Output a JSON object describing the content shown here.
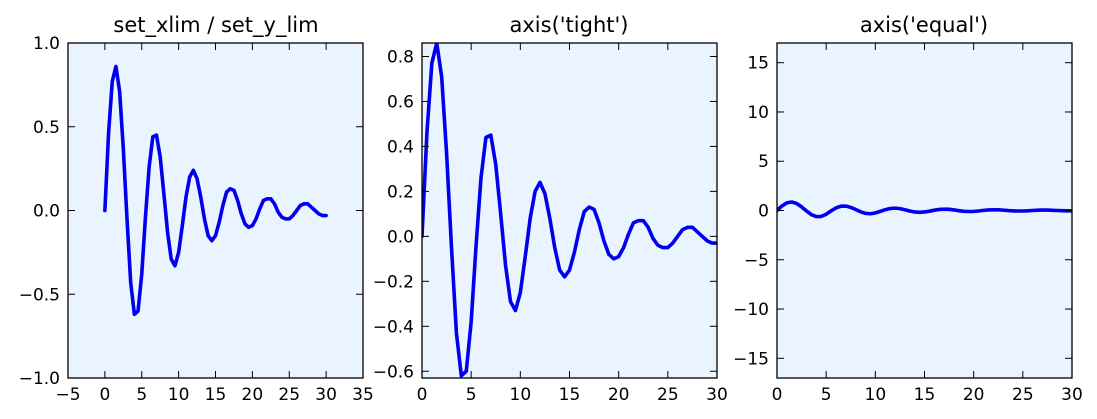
{
  "chart_data": [
    {
      "type": "line",
      "title": "set_xlim / set_y_lim",
      "xlim": [
        -5,
        35
      ],
      "ylim": [
        -1.0,
        1.0
      ],
      "xticks": [
        -5,
        0,
        5,
        10,
        15,
        20,
        25,
        30,
        35
      ],
      "xtick_labels": [
        "−5",
        "0",
        "5",
        "10",
        "15",
        "20",
        "25",
        "30",
        "35"
      ],
      "yticks": [
        -1.0,
        -0.5,
        0.0,
        0.5,
        1.0
      ],
      "ytick_labels": [
        "−1.0",
        "−0.5",
        "0.0",
        "0.5",
        "1.0"
      ],
      "background": "#eaf4fe",
      "series": [
        {
          "color": "#0000ee",
          "x": [
            0,
            0.5,
            1,
            1.5,
            2,
            2.5,
            3,
            3.5,
            4,
            4.5,
            5,
            5.5,
            6,
            6.5,
            7,
            7.5,
            8,
            8.5,
            9,
            9.5,
            10,
            10.5,
            11,
            11.5,
            12,
            12.5,
            13,
            13.5,
            14,
            14.5,
            15,
            15.5,
            16,
            16.5,
            17,
            17.5,
            18,
            18.5,
            19,
            19.5,
            20,
            20.5,
            21,
            21.5,
            22,
            22.5,
            23,
            23.5,
            24,
            24.5,
            25,
            25.5,
            26,
            26.5,
            27,
            27.5,
            28,
            28.5,
            29,
            29.5,
            30
          ],
          "y": [
            0.0,
            0.46,
            0.77,
            0.86,
            0.71,
            0.37,
            -0.05,
            -0.43,
            -0.62,
            -0.6,
            -0.38,
            -0.04,
            0.26,
            0.44,
            0.45,
            0.32,
            0.1,
            -0.13,
            -0.29,
            -0.33,
            -0.25,
            -0.09,
            0.08,
            0.2,
            0.24,
            0.19,
            0.08,
            -0.05,
            -0.15,
            -0.18,
            -0.15,
            -0.07,
            0.03,
            0.11,
            0.13,
            0.12,
            0.06,
            -0.02,
            -0.08,
            -0.1,
            -0.09,
            -0.05,
            0.01,
            0.06,
            0.07,
            0.07,
            0.04,
            -0.01,
            -0.04,
            -0.05,
            -0.05,
            -0.03,
            0.0,
            0.03,
            0.04,
            0.04,
            0.02,
            0.0,
            -0.02,
            -0.03,
            -0.03
          ]
        }
      ]
    },
    {
      "type": "line",
      "title": "axis('tight')",
      "xlim": [
        0,
        30
      ],
      "ylim": [
        -0.63,
        0.86
      ],
      "xticks": [
        0,
        5,
        10,
        15,
        20,
        25,
        30
      ],
      "xtick_labels": [
        "0",
        "5",
        "10",
        "15",
        "20",
        "25",
        "30"
      ],
      "yticks": [
        -0.6,
        -0.4,
        -0.2,
        0.0,
        0.2,
        0.4,
        0.6,
        0.8
      ],
      "ytick_labels": [
        "−0.6",
        "−0.4",
        "−0.2",
        "0.0",
        "0.2",
        "0.4",
        "0.6",
        "0.8"
      ],
      "background": "#eaf4fe",
      "series": [
        {
          "color": "#0000ee",
          "x": [
            0,
            0.5,
            1,
            1.5,
            2,
            2.5,
            3,
            3.5,
            4,
            4.5,
            5,
            5.5,
            6,
            6.5,
            7,
            7.5,
            8,
            8.5,
            9,
            9.5,
            10,
            10.5,
            11,
            11.5,
            12,
            12.5,
            13,
            13.5,
            14,
            14.5,
            15,
            15.5,
            16,
            16.5,
            17,
            17.5,
            18,
            18.5,
            19,
            19.5,
            20,
            20.5,
            21,
            21.5,
            22,
            22.5,
            23,
            23.5,
            24,
            24.5,
            25,
            25.5,
            26,
            26.5,
            27,
            27.5,
            28,
            28.5,
            29,
            29.5,
            30
          ],
          "y": [
            0.0,
            0.46,
            0.77,
            0.86,
            0.71,
            0.37,
            -0.05,
            -0.43,
            -0.62,
            -0.6,
            -0.38,
            -0.04,
            0.26,
            0.44,
            0.45,
            0.32,
            0.1,
            -0.13,
            -0.29,
            -0.33,
            -0.25,
            -0.09,
            0.08,
            0.2,
            0.24,
            0.19,
            0.08,
            -0.05,
            -0.15,
            -0.18,
            -0.15,
            -0.07,
            0.03,
            0.11,
            0.13,
            0.12,
            0.06,
            -0.02,
            -0.08,
            -0.1,
            -0.09,
            -0.05,
            0.01,
            0.06,
            0.07,
            0.07,
            0.04,
            -0.01,
            -0.04,
            -0.05,
            -0.05,
            -0.03,
            0.0,
            0.03,
            0.04,
            0.04,
            0.02,
            0.0,
            -0.02,
            -0.03,
            -0.03
          ]
        }
      ]
    },
    {
      "type": "line",
      "title": "axis('equal')",
      "xlim": [
        0,
        30
      ],
      "ylim": [
        -17,
        17
      ],
      "xticks": [
        0,
        5,
        10,
        15,
        20,
        25,
        30
      ],
      "xtick_labels": [
        "0",
        "5",
        "10",
        "15",
        "20",
        "25",
        "30"
      ],
      "yticks": [
        -15,
        -10,
        -5,
        0,
        5,
        10,
        15
      ],
      "ytick_labels": [
        "−15",
        "−10",
        "−5",
        "0",
        "5",
        "10",
        "15"
      ],
      "background": "#eaf4fe",
      "series": [
        {
          "color": "#0000ee",
          "x": [
            0,
            0.5,
            1,
            1.5,
            2,
            2.5,
            3,
            3.5,
            4,
            4.5,
            5,
            5.5,
            6,
            6.5,
            7,
            7.5,
            8,
            8.5,
            9,
            9.5,
            10,
            10.5,
            11,
            11.5,
            12,
            12.5,
            13,
            13.5,
            14,
            14.5,
            15,
            15.5,
            16,
            16.5,
            17,
            17.5,
            18,
            18.5,
            19,
            19.5,
            20,
            20.5,
            21,
            21.5,
            22,
            22.5,
            23,
            23.5,
            24,
            24.5,
            25,
            25.5,
            26,
            26.5,
            27,
            27.5,
            28,
            28.5,
            29,
            29.5,
            30
          ],
          "y": [
            0.0,
            0.46,
            0.77,
            0.86,
            0.71,
            0.37,
            -0.05,
            -0.43,
            -0.62,
            -0.6,
            -0.38,
            -0.04,
            0.26,
            0.44,
            0.45,
            0.32,
            0.1,
            -0.13,
            -0.29,
            -0.33,
            -0.25,
            -0.09,
            0.08,
            0.2,
            0.24,
            0.19,
            0.08,
            -0.05,
            -0.15,
            -0.18,
            -0.15,
            -0.07,
            0.03,
            0.11,
            0.13,
            0.12,
            0.06,
            -0.02,
            -0.08,
            -0.1,
            -0.09,
            -0.05,
            0.01,
            0.06,
            0.07,
            0.07,
            0.04,
            -0.01,
            -0.04,
            -0.05,
            -0.05,
            -0.03,
            0.0,
            0.03,
            0.04,
            0.04,
            0.02,
            0.0,
            -0.02,
            -0.03,
            -0.03
          ]
        }
      ]
    }
  ]
}
